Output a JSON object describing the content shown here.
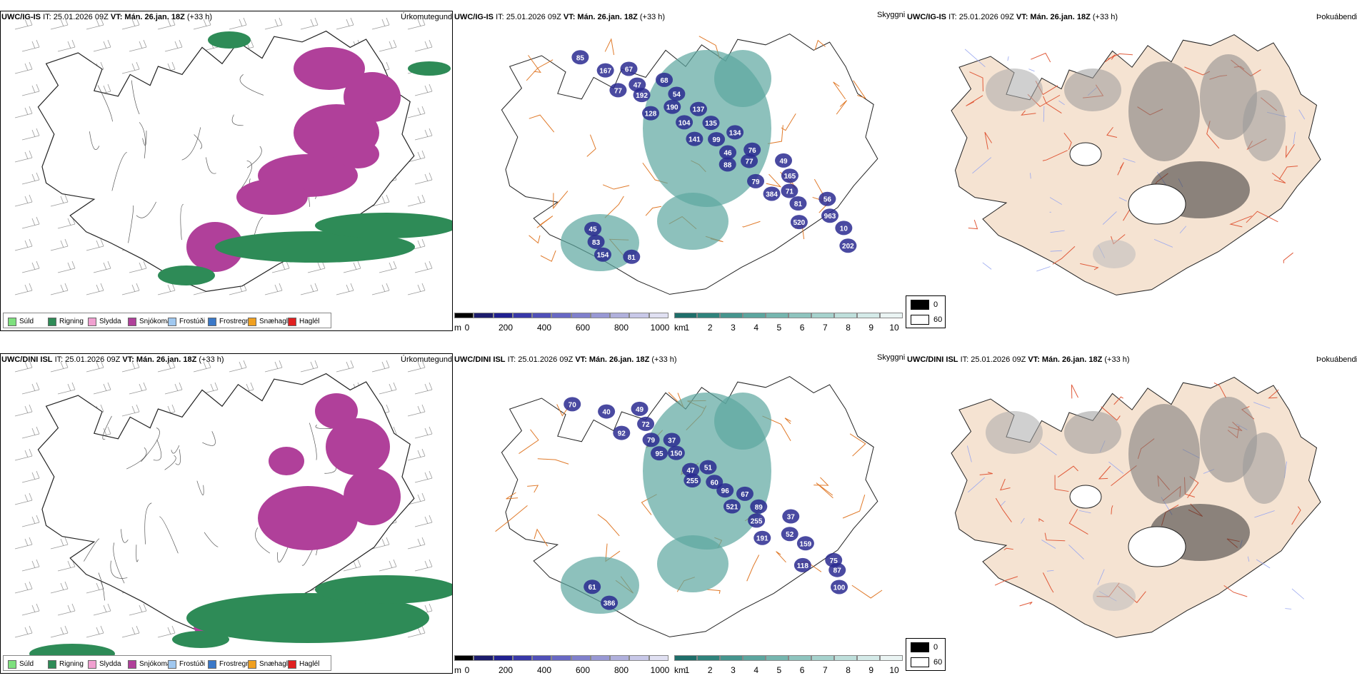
{
  "rows": [
    {
      "model": "UWC/IG-IS",
      "init": "IT: 25.01.2026 09Z",
      "vt_label": "VT:",
      "vt": "Mán. 26.jan. 18Z",
      "lead": "(+33 h)",
      "ceiling_peaks": [
        "85",
        "77",
        "128",
        "141",
        "88",
        "384",
        "520",
        "202",
        "167",
        "192",
        "104",
        "46",
        "79",
        "81",
        "10",
        "154",
        "47",
        "190",
        "99",
        "77",
        "71",
        "963",
        "83",
        "67",
        "54",
        "135",
        "76",
        "165",
        "56",
        "45",
        "81",
        "68",
        "137",
        "134",
        "49"
      ]
    },
    {
      "model": "UWC/DINI ISL",
      "init": "IT: 25.01.2026 09Z",
      "vt_label": "VT:",
      "vt": "Mán. 26.jan. 18Z",
      "lead": "(+33 h)",
      "ceiling_peaks": [
        "70",
        "92",
        "95",
        "255",
        "521",
        "191",
        "118",
        "100",
        "40",
        "79",
        "47",
        "96",
        "255",
        "159",
        "87",
        "386",
        "72",
        "150",
        "60",
        "89",
        "52",
        "75",
        "61",
        "49",
        "37",
        "51",
        "67",
        "37"
      ]
    }
  ],
  "panel_titles": {
    "precip": "Úrkomutegund",
    "ceiling": "Skyggni",
    "fog": "Þokuábendi"
  },
  "precip_legend": [
    {
      "label": "Súld",
      "color": "#7ee07e"
    },
    {
      "label": "Rigning",
      "color": "#2e8b57"
    },
    {
      "label": "Slydda",
      "color": "#f0a0d0"
    },
    {
      "label": "Snjókoma",
      "color": "#b0409a"
    },
    {
      "label": "Frostúði",
      "color": "#a0c8f0"
    },
    {
      "label": "Frostregn",
      "color": "#3a78c8"
    },
    {
      "label": "Snæhagl",
      "color": "#f0a020"
    },
    {
      "label": "Haglél",
      "color": "#e02020"
    }
  ],
  "ceiling_bar": {
    "unit": "m",
    "ticks": [
      "0",
      "200",
      "400",
      "600",
      "800",
      "1000"
    ],
    "colors": [
      "#000000",
      "#1c1c6c",
      "#202090",
      "#3838a8",
      "#5050b8",
      "#6868c4",
      "#8080cc",
      "#9898d4",
      "#b0b0dc",
      "#c8c8e8",
      "#e0e0f2"
    ]
  },
  "visibility_bar": {
    "unit": "km",
    "ticks": [
      "1",
      "2",
      "3",
      "4",
      "5",
      "6",
      "7",
      "8",
      "9",
      "10"
    ],
    "colors": [
      "#1e6e6a",
      "#2f837c",
      "#45958e",
      "#5ca69f",
      "#76b6af",
      "#8ec4be",
      "#a6d2cd",
      "#bedfdb",
      "#d4eae8",
      "#eaf4f3"
    ]
  },
  "fog_legend": [
    {
      "label": "0",
      "color": "#000000"
    },
    {
      "label": "60",
      "color": "#ffffff"
    }
  ],
  "colors": {
    "land": "#f5e3d2",
    "roads_ceiling": "#e07a2a",
    "roads_fog": "#e05a3a",
    "rivers": "#9aa8f0"
  }
}
